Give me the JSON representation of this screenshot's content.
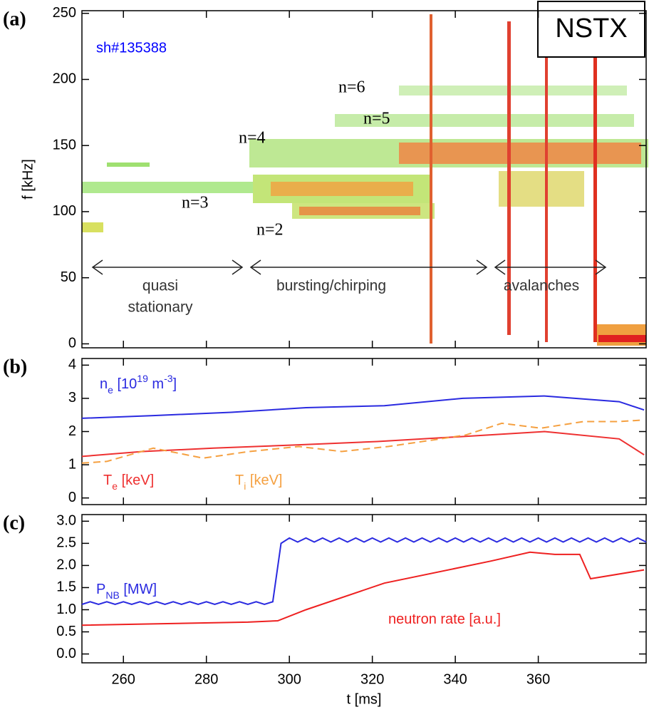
{
  "chart_data": [
    {
      "type": "spectrogram",
      "panel": "(a)",
      "ylabel": "f [kHz]",
      "xlim": [
        250,
        386
      ],
      "xticks": [
        260,
        280,
        300,
        320,
        340,
        360
      ],
      "ylim": [
        -3,
        252
      ],
      "yticks": [
        0,
        50,
        100,
        150,
        200,
        250
      ],
      "badge": "NSTX",
      "annotations": [
        "sh#135388",
        "n=6",
        "n=5",
        "n=4",
        "n=3",
        "n=2",
        "quasi",
        "stationary",
        "bursting/chirping",
        "avalanches"
      ]
    },
    {
      "type": "line",
      "panel": "(b)",
      "xlim": [
        250,
        386
      ],
      "xticks": [
        260,
        280,
        300,
        320,
        340,
        360
      ],
      "ylim": [
        -0.2,
        4.2
      ],
      "yticks": [
        0,
        1,
        2,
        3,
        4
      ],
      "series": [
        {
          "name": [
            "n",
            "e",
            " [10",
            "19",
            " m",
            "-3",
            "]"
          ],
          "color": "#2a2ae0",
          "x": [
            250,
            267.2,
            286,
            304,
            322.9,
            341.8,
            361.5,
            379.5,
            385.5
          ],
          "values": [
            2.4,
            2.48,
            2.58,
            2.72,
            2.78,
            3.0,
            3.07,
            2.9,
            2.65
          ]
        },
        {
          "name": [
            "T",
            "e",
            " [keV]"
          ],
          "color": "#ee3030",
          "x": [
            250,
            264.6,
            281.7,
            302.3,
            321.2,
            341.8,
            361.5,
            379.5,
            385.5
          ],
          "values": [
            1.25,
            1.4,
            1.5,
            1.6,
            1.7,
            1.85,
            2.0,
            1.78,
            1.3
          ]
        },
        {
          "name": [
            "T",
            "i",
            " [keV]"
          ],
          "color": "#f5a040",
          "dashed": true,
          "x": [
            250,
            256,
            267.2,
            279.2,
            290.3,
            302.3,
            312.6,
            323.8,
            334.9,
            342.6,
            351.2,
            360.6,
            370.9,
            379.5,
            385.5
          ],
          "values": [
            1.05,
            1.1,
            1.5,
            1.2,
            1.4,
            1.55,
            1.4,
            1.55,
            1.75,
            1.9,
            2.25,
            2.1,
            2.3,
            2.3,
            2.35
          ]
        }
      ]
    },
    {
      "type": "line",
      "panel": "(c)",
      "xlabel": "t [ms]",
      "xlim": [
        250,
        386
      ],
      "xticks": [
        260,
        280,
        300,
        320,
        340,
        360
      ],
      "ylim": [
        -0.2,
        3.15
      ],
      "yticks": [
        {
          "value": 0,
          "label": "0.0"
        },
        0.5,
        {
          "value": 1,
          "label": "1.0"
        },
        1.5,
        {
          "value": 2,
          "label": "2.0"
        },
        2.5,
        {
          "value": 3,
          "label": "3.0"
        }
      ],
      "series": [
        {
          "name": [
            "P",
            "NB",
            " [MW]"
          ],
          "color": "#2a2ae0",
          "x": [
            250,
            252,
            254,
            256,
            258,
            260,
            262,
            264,
            266,
            268,
            270,
            272,
            274,
            276,
            278,
            280,
            282,
            284,
            286,
            288,
            290,
            292,
            294,
            296,
            298,
            300,
            302,
            304,
            306,
            308,
            310,
            312,
            314,
            316,
            318,
            320,
            322,
            324,
            326,
            328,
            330,
            332,
            334,
            336,
            338,
            340,
            342,
            344,
            346,
            348,
            350,
            352,
            354,
            356,
            358,
            360,
            362,
            364,
            366,
            368,
            370,
            372,
            374,
            376,
            378,
            380,
            382,
            384,
            386
          ],
          "values": [
            1.12,
            1.18,
            1.12,
            1.18,
            1.12,
            1.18,
            1.12,
            1.18,
            1.12,
            1.18,
            1.12,
            1.18,
            1.12,
            1.18,
            1.12,
            1.18,
            1.12,
            1.18,
            1.12,
            1.18,
            1.12,
            1.18,
            1.12,
            1.18,
            2.5,
            2.62,
            2.53,
            2.62,
            2.53,
            2.62,
            2.53,
            2.62,
            2.53,
            2.62,
            2.53,
            2.62,
            2.53,
            2.62,
            2.53,
            2.62,
            2.53,
            2.62,
            2.53,
            2.62,
            2.53,
            2.62,
            2.53,
            2.62,
            2.53,
            2.62,
            2.53,
            2.62,
            2.53,
            2.62,
            2.53,
            2.62,
            2.53,
            2.62,
            2.53,
            2.62,
            2.53,
            2.62,
            2.53,
            2.62,
            2.53,
            2.62,
            2.53,
            2.62,
            2.53
          ]
        },
        {
          "name": [
            "neutron rate [a.u.]"
          ],
          "color": "#ee2020",
          "x": [
            250,
            290,
            297.2,
            304,
            322.9,
            348.6,
            358,
            364,
            370,
            372.6,
            385.5
          ],
          "values": [
            0.65,
            0.72,
            0.75,
            1.0,
            1.6,
            2.1,
            2.3,
            2.25,
            2.25,
            1.7,
            1.9
          ]
        }
      ]
    }
  ]
}
